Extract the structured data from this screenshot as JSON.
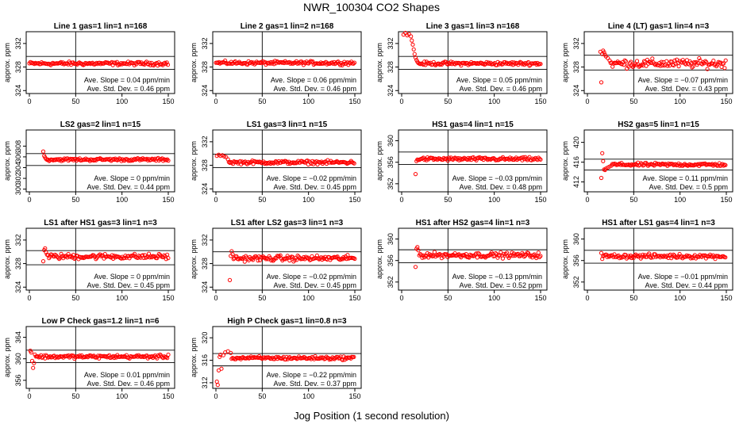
{
  "title": "NWR_100304  CO2 Shapes",
  "xlabel": "Jog Position (1 second resolution)",
  "colors": {
    "points": "#ff0000",
    "axes": "#000000",
    "background": "#ffffff"
  },
  "chart_data": [
    {
      "type": "scatter",
      "title": "Line 1 gas=1 lin=1 n=168",
      "ylabel": "approx. ppm",
      "xlim": [
        0,
        150
      ],
      "ylim": [
        323.5,
        334
      ],
      "yticks": [
        324,
        328,
        332
      ],
      "xticks": [
        0,
        50,
        100,
        150
      ],
      "hlines": [
        329.8,
        327.6
      ],
      "vline": 50,
      "slope_label": "Ave. Slope = 0.04 ppm/min",
      "stddev_label": "Ave. Std. Dev. = 0.46 ppm",
      "profile": {
        "start": 0,
        "end": 150,
        "base": 328.6,
        "noise": 0.18,
        "head": []
      }
    },
    {
      "type": "scatter",
      "title": "Line 2 gas=1 lin=2 n=168",
      "ylabel": "approx. ppm",
      "xlim": [
        0,
        150
      ],
      "ylim": [
        323.5,
        334
      ],
      "yticks": [
        324,
        328,
        332
      ],
      "xticks": [
        0,
        50,
        100,
        150
      ],
      "hlines": [
        329.8,
        327.6
      ],
      "vline": 50,
      "slope_label": "Ave. Slope = 0.06 ppm/min",
      "stddev_label": "Ave. Std. Dev. = 0.46 ppm",
      "profile": {
        "start": 0,
        "end": 150,
        "base": 328.7,
        "noise": 0.18,
        "head": []
      }
    },
    {
      "type": "scatter",
      "title": "Line 3 gas=1 lin=3 n=168",
      "ylabel": "approx. ppm",
      "xlim": [
        0,
        150
      ],
      "ylim": [
        323.5,
        334
      ],
      "yticks": [
        324,
        328,
        332
      ],
      "xticks": [
        0,
        50,
        100,
        150
      ],
      "hlines": [
        329.8,
        327.6
      ],
      "vline": 50,
      "slope_label": "Ave. Slope = 0.05 ppm/min",
      "stddev_label": "Ave. Std. Dev. = 0.46 ppm",
      "profile": {
        "start": 0,
        "end": 150,
        "base": 328.6,
        "noise": 0.18,
        "head": [
          [
            2,
            333.5
          ],
          [
            4,
            333.8
          ],
          [
            6,
            333.4
          ],
          [
            8,
            333.6
          ],
          [
            10,
            333.2
          ],
          [
            11,
            332.5
          ],
          [
            12,
            331.8
          ],
          [
            13,
            331
          ],
          [
            14,
            330.2
          ],
          [
            15,
            329.6
          ],
          [
            16,
            329.2
          ],
          [
            17,
            328.9
          ]
        ]
      }
    },
    {
      "type": "scatter",
      "title": "Line 4 (LT) gas=1 lin=4 n=3",
      "ylabel": "approx. ppm",
      "xlim": [
        0,
        150
      ],
      "ylim": [
        323.5,
        334
      ],
      "yticks": [
        324,
        328,
        332
      ],
      "xticks": [
        0,
        50,
        100,
        150
      ],
      "hlines": [
        330,
        327.5
      ],
      "vline": 50,
      "slope_label": "Ave. Slope = −0.07 ppm/min",
      "stddev_label": "Ave. Std. Dev. = 0.43 ppm",
      "profile": {
        "start": 14,
        "end": 150,
        "base": 328.6,
        "noise": 0.45,
        "head": [
          [
            14,
            330.6
          ],
          [
            15,
            325.4
          ],
          [
            16,
            330.2
          ],
          [
            17,
            330.8
          ],
          [
            18,
            330.5
          ],
          [
            19,
            330.1
          ],
          [
            20,
            329.8
          ],
          [
            22,
            329.5
          ],
          [
            24,
            329.1
          ]
        ]
      }
    },
    {
      "type": "scatter",
      "title": "LS2 gas=2 lin=1 n=15",
      "ylabel": "approx. ppm",
      "xlim": [
        0,
        150
      ],
      "ylim": [
        299.5,
        311
      ],
      "yticks": [
        300,
        302,
        304,
        306,
        308
      ],
      "xticks": [
        0,
        50,
        100,
        150
      ],
      "hlines": [
        306.6,
        304.4
      ],
      "vline": 50,
      "slope_label": "Ave. Slope = 0 ppm/min",
      "stddev_label": "Ave. Std. Dev. = 0.44 ppm",
      "profile": {
        "start": 15,
        "end": 150,
        "base": 305.5,
        "noise": 0.16,
        "head": [
          [
            15,
            307
          ],
          [
            16,
            306.2
          ],
          [
            17,
            305.9
          ]
        ]
      }
    },
    {
      "type": "scatter",
      "title": "LS1 gas=3 lin=1 n=15",
      "ylabel": "approx. ppm",
      "xlim": [
        0,
        150
      ],
      "ylim": [
        323.5,
        334
      ],
      "yticks": [
        324,
        328,
        332
      ],
      "xticks": [
        0,
        50,
        100,
        150
      ],
      "hlines": [
        329.9,
        327.6
      ],
      "vline": 50,
      "slope_label": "Ave. Slope = −0.02 ppm/min",
      "stddev_label": "Ave. Std. Dev. = 0.45 ppm",
      "profile": {
        "start": 0,
        "end": 150,
        "base": 328.5,
        "noise": 0.18,
        "head": [
          [
            1,
            329.6
          ],
          [
            3,
            329.8
          ],
          [
            5,
            329.6
          ],
          [
            7,
            329.7
          ],
          [
            9,
            329.5
          ],
          [
            11,
            329.4
          ],
          [
            13,
            329
          ]
        ]
      }
    },
    {
      "type": "scatter",
      "title": "HS1 gas=4 lin=1 n=15",
      "ylabel": "approx. ppm",
      "xlim": [
        0,
        150
      ],
      "ylim": [
        350.5,
        362
      ],
      "yticks": [
        352,
        356,
        360
      ],
      "xticks": [
        0,
        50,
        100,
        150
      ],
      "hlines": [
        357.9,
        355.6
      ],
      "vline": 50,
      "slope_label": "Ave. Slope = −0.03 ppm/min",
      "stddev_label": "Ave. Std. Dev. = 0.48 ppm",
      "profile": {
        "start": 15,
        "end": 150,
        "base": 356.6,
        "noise": 0.2,
        "head": [
          [
            15,
            353.8
          ],
          [
            16,
            356.2
          ],
          [
            17,
            356.5
          ]
        ]
      }
    },
    {
      "type": "scatter",
      "title": "HS2 gas=5 lin=1 n=15",
      "ylabel": "approx. ppm",
      "xlim": [
        0,
        150
      ],
      "ylim": [
        410,
        422.5
      ],
      "yticks": [
        412,
        416,
        420
      ],
      "xticks": [
        0,
        50,
        100,
        150
      ],
      "hlines": [
        416.6,
        414.4
      ],
      "vline": 50,
      "slope_label": "Ave. Slope = 0.11 ppm/min",
      "stddev_label": "Ave. Std. Dev. = 0.5 ppm",
      "profile": {
        "start": 15,
        "end": 150,
        "base": 415.5,
        "noise": 0.2,
        "head": [
          [
            15,
            412.8
          ],
          [
            16,
            417.8
          ],
          [
            17,
            416.2
          ],
          [
            18,
            414.5
          ],
          [
            19,
            414.4
          ],
          [
            20,
            414.7
          ],
          [
            22,
            414.9
          ],
          [
            24,
            415.1
          ],
          [
            26,
            415.3
          ]
        ]
      }
    },
    {
      "type": "scatter",
      "title": "LS1 after HS1 gas=3 lin=1 n=3",
      "ylabel": "approx. ppm",
      "xlim": [
        0,
        150
      ],
      "ylim": [
        323.5,
        334
      ],
      "yticks": [
        324,
        328,
        332
      ],
      "xticks": [
        0,
        50,
        100,
        150
      ],
      "hlines": [
        330.2,
        327.8
      ],
      "vline": 50,
      "slope_label": "Ave. Slope = 0 ppm/min",
      "stddev_label": "Ave. Std. Dev. = 0.45 ppm",
      "profile": {
        "start": 15,
        "end": 150,
        "base": 329.2,
        "noise": 0.28,
        "head": [
          [
            15,
            328.4
          ],
          [
            16,
            330.3
          ],
          [
            17,
            330.6
          ],
          [
            18,
            329.9
          ]
        ]
      }
    },
    {
      "type": "scatter",
      "title": "LS1 after LS2 gas=3 lin=1 n=3",
      "ylabel": "approx. ppm",
      "xlim": [
        0,
        150
      ],
      "ylim": [
        323.5,
        334
      ],
      "yticks": [
        324,
        328,
        332
      ],
      "xticks": [
        0,
        50,
        100,
        150
      ],
      "hlines": [
        330,
        327.7
      ],
      "vline": 50,
      "slope_label": "Ave. Slope = −0.02 ppm/min",
      "stddev_label": "Ave. Std. Dev. = 0.45 ppm",
      "profile": {
        "start": 15,
        "end": 150,
        "base": 328.9,
        "noise": 0.28,
        "head": [
          [
            15,
            325.2
          ],
          [
            16,
            329.3
          ],
          [
            17,
            330.1
          ],
          [
            18,
            329.6
          ]
        ]
      }
    },
    {
      "type": "scatter",
      "title": "HS1 after HS2 gas=4 lin=1 n=3",
      "ylabel": "approx. ppm",
      "xlim": [
        0,
        150
      ],
      "ylim": [
        350.5,
        362
      ],
      "yticks": [
        352,
        356,
        360
      ],
      "xticks": [
        0,
        50,
        100,
        150
      ],
      "hlines": [
        358,
        355.6
      ],
      "vline": 50,
      "slope_label": "Ave. Slope = −0.13 ppm/min",
      "stddev_label": "Ave. Std. Dev. = 0.52 ppm",
      "profile": {
        "start": 15,
        "end": 150,
        "base": 357,
        "noise": 0.3,
        "head": [
          [
            15,
            354.8
          ],
          [
            16,
            358.2
          ],
          [
            17,
            358.5
          ],
          [
            18,
            357.9
          ]
        ]
      }
    },
    {
      "type": "scatter",
      "title": "HS1 after LS1 gas=4 lin=1 n=3",
      "ylabel": "approx. ppm",
      "xlim": [
        0,
        150
      ],
      "ylim": [
        350.5,
        362
      ],
      "yticks": [
        352,
        356,
        360
      ],
      "xticks": [
        0,
        50,
        100,
        150
      ],
      "hlines": [
        357.9,
        355.5
      ],
      "vline": 50,
      "slope_label": "Ave. Slope = −0.01 ppm/min",
      "stddev_label": "Ave. Std. Dev. = 0.44 ppm",
      "profile": {
        "start": 15,
        "end": 150,
        "base": 356.8,
        "noise": 0.25,
        "head": [
          [
            15,
            357.4
          ],
          [
            16,
            356.3
          ]
        ]
      }
    },
    {
      "type": "scatter",
      "title": "Low P Check gas=1.2 lin=1 n=6",
      "ylabel": "approx. ppm",
      "xlim": [
        0,
        150
      ],
      "ylim": [
        354.5,
        366
      ],
      "yticks": [
        356,
        360,
        364
      ],
      "xticks": [
        0,
        50,
        100,
        150
      ],
      "hlines": [
        361.6,
        359.3
      ],
      "vline": 50,
      "slope_label": "Ave. Slope = 0.01 ppm/min",
      "stddev_label": "Ave. Std. Dev. = 0.46 ppm",
      "profile": {
        "start": 0,
        "end": 150,
        "base": 360.4,
        "noise": 0.2,
        "head": [
          [
            1,
            361.5
          ],
          [
            2,
            361.2
          ],
          [
            3,
            359.6
          ],
          [
            4,
            358.3
          ],
          [
            5,
            359.2
          ],
          [
            6,
            360.8
          ]
        ]
      }
    },
    {
      "type": "scatter",
      "title": "High P Check gas=1 lin=0.8 n=3",
      "ylabel": "approx. ppm",
      "xlim": [
        0,
        150
      ],
      "ylim": [
        311,
        322
      ],
      "yticks": [
        312,
        316,
        320
      ],
      "xticks": [
        0,
        50,
        100,
        150
      ],
      "hlines": [
        317.2,
        315
      ],
      "vline": 50,
      "slope_label": "Ave. Slope = −0.22 ppm/min",
      "stddev_label": "Ave. Std. Dev. = 0.37 ppm",
      "profile": {
        "start": 0,
        "end": 150,
        "base": 316.4,
        "noise": 0.18,
        "head": [
          [
            1,
            312.2
          ],
          [
            2,
            311.6
          ],
          [
            3,
            314.2
          ],
          [
            4,
            316.6
          ],
          [
            5,
            317
          ],
          [
            6,
            314.5
          ],
          [
            8,
            316.9
          ],
          [
            10,
            317.4
          ],
          [
            13,
            317.6
          ],
          [
            16,
            317.3
          ]
        ]
      }
    }
  ]
}
